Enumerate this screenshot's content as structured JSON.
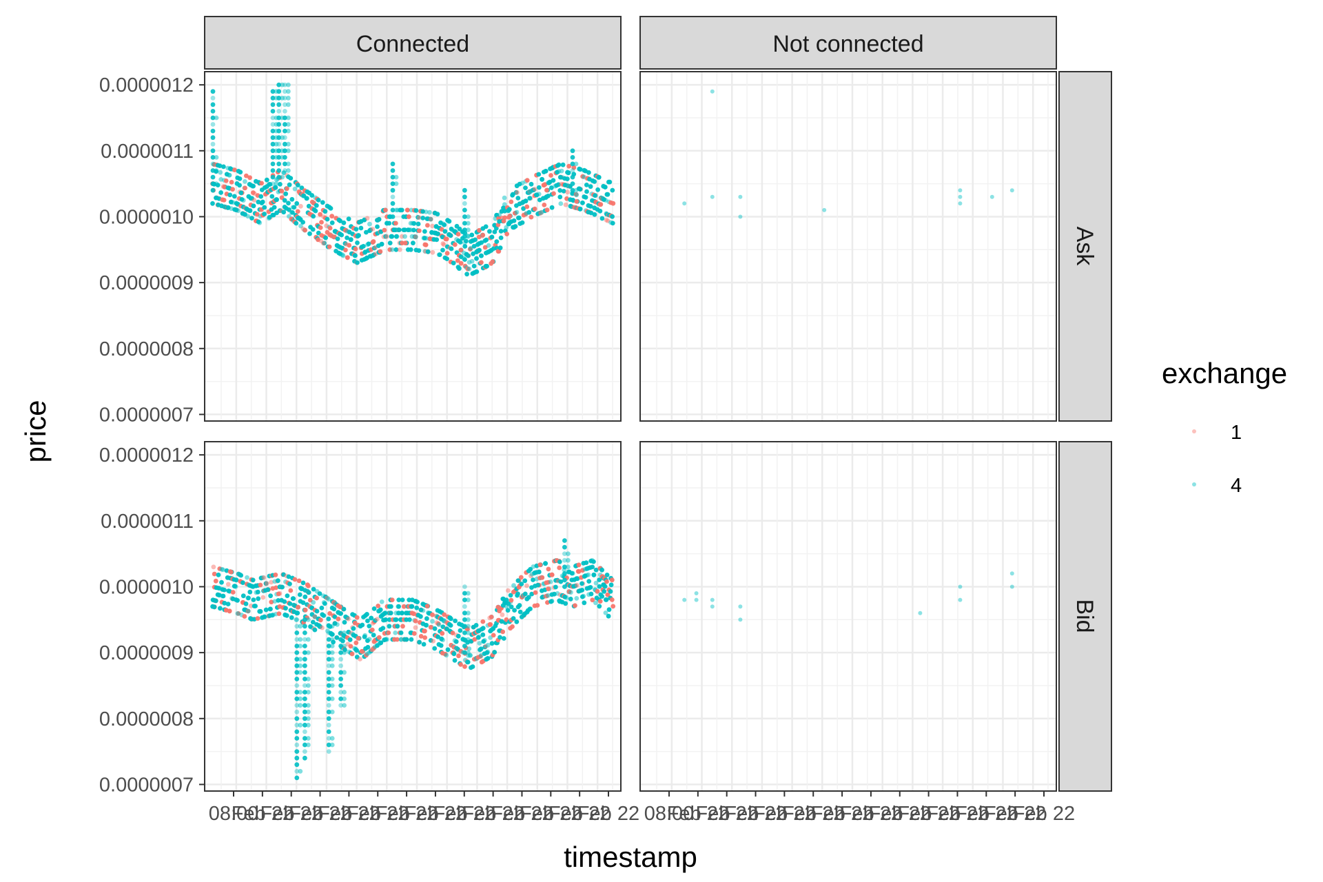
{
  "chart_data": {
    "type": "scatter",
    "xlabel": "timestamp",
    "ylabel": "price",
    "ylim": [
      6.9e-07,
      1.22e-06
    ],
    "y_ticks": [
      "0.0000007",
      "0.0000008",
      "0.0000009",
      "0.0000010",
      "0.0000011",
      "0.0000012"
    ],
    "y_tick_values": [
      7e-07,
      8e-07,
      9e-07,
      1e-06,
      1.1e-06,
      1.2e-06
    ],
    "x_tick_labels": [
      "08:00",
      "Feb 22",
      "Feb 22",
      "Feb 22",
      "Feb 22",
      "Feb 22",
      "Feb 22",
      "Feb 22",
      "Feb 22",
      "Feb 22",
      "Feb 22",
      "Feb 22",
      "Feb 22",
      "Feb 22"
    ],
    "grid": true,
    "facet_cols": [
      "Connected",
      "Not connected"
    ],
    "facet_rows": [
      "Ask",
      "Bid"
    ],
    "legend": {
      "title": "exchange",
      "position": "right",
      "entries": [
        {
          "label": "1",
          "color": "#F8766D"
        },
        {
          "label": "4",
          "color": "#00BFC4"
        }
      ]
    },
    "series": [
      {
        "name": "1",
        "color": "#F8766D"
      },
      {
        "name": "4",
        "color": "#00BFC4"
      }
    ],
    "trends": {
      "ask_connected": [
        {
          "x": 0,
          "y": 1.05e-06
        },
        {
          "x": 0.06,
          "y": 1.04e-06
        },
        {
          "x": 0.12,
          "y": 1.02e-06
        },
        {
          "x": 0.17,
          "y": 1.04e-06
        },
        {
          "x": 0.23,
          "y": 1.01e-06
        },
        {
          "x": 0.3,
          "y": 9.8e-07
        },
        {
          "x": 0.36,
          "y": 9.6e-07
        },
        {
          "x": 0.43,
          "y": 9.8e-07
        },
        {
          "x": 0.5,
          "y": 9.8e-07
        },
        {
          "x": 0.56,
          "y": 9.75e-07
        },
        {
          "x": 0.6,
          "y": 9.6e-07
        },
        {
          "x": 0.64,
          "y": 9.4e-07
        },
        {
          "x": 0.7,
          "y": 9.6e-07
        },
        {
          "x": 0.74,
          "y": 1.01e-06
        },
        {
          "x": 0.8,
          "y": 1.03e-06
        },
        {
          "x": 0.87,
          "y": 1.05e-06
        },
        {
          "x": 0.93,
          "y": 1.04e-06
        },
        {
          "x": 1.0,
          "y": 1.02e-06
        }
      ],
      "bid_connected": [
        {
          "x": 0,
          "y": 1e-06
        },
        {
          "x": 0.06,
          "y": 9.9e-07
        },
        {
          "x": 0.1,
          "y": 9.8e-07
        },
        {
          "x": 0.17,
          "y": 9.9e-07
        },
        {
          "x": 0.23,
          "y": 9.75e-07
        },
        {
          "x": 0.28,
          "y": 9.55e-07
        },
        {
          "x": 0.33,
          "y": 9.35e-07
        },
        {
          "x": 0.37,
          "y": 9.2e-07
        },
        {
          "x": 0.43,
          "y": 9.5e-07
        },
        {
          "x": 0.5,
          "y": 9.5e-07
        },
        {
          "x": 0.56,
          "y": 9.35e-07
        },
        {
          "x": 0.6,
          "y": 9.2e-07
        },
        {
          "x": 0.64,
          "y": 9.05e-07
        },
        {
          "x": 0.7,
          "y": 9.25e-07
        },
        {
          "x": 0.74,
          "y": 9.65e-07
        },
        {
          "x": 0.8,
          "y": 1e-06
        },
        {
          "x": 0.86,
          "y": 1.01e-06
        },
        {
          "x": 0.9,
          "y": 1e-06
        },
        {
          "x": 0.95,
          "y": 1.01e-06
        },
        {
          "x": 1.0,
          "y": 9.8e-07
        }
      ]
    },
    "spikes": {
      "ask": [
        {
          "x": 0.0,
          "ymin": 1.04e-06,
          "ymax": 1.19e-06
        },
        {
          "x": 0.15,
          "ymin": 1.05e-06,
          "ymax": 1.19e-06
        },
        {
          "x": 0.165,
          "ymin": 1.06e-06,
          "ymax": 1.2e-06
        },
        {
          "x": 0.18,
          "ymin": 1.07e-06,
          "ymax": 1.2e-06
        },
        {
          "x": 0.45,
          "ymin": 1e-06,
          "ymax": 1.08e-06
        },
        {
          "x": 0.63,
          "ymin": 9.6e-07,
          "ymax": 1.04e-06
        },
        {
          "x": 0.9,
          "ymin": 1.04e-06,
          "ymax": 1.1e-06
        }
      ],
      "bid": [
        {
          "x": 0.21,
          "ymin": 7.1e-07,
          "ymax": 9.6e-07
        },
        {
          "x": 0.23,
          "ymin": 7.4e-07,
          "ymax": 9.5e-07
        },
        {
          "x": 0.29,
          "ymin": 7.5e-07,
          "ymax": 9.4e-07
        },
        {
          "x": 0.32,
          "ymin": 8.2e-07,
          "ymax": 9.3e-07
        },
        {
          "x": 0.63,
          "ymin": 9e-07,
          "ymax": 1e-06
        },
        {
          "x": 0.88,
          "ymin": 1e-06,
          "ymax": 1.07e-06
        }
      ]
    },
    "not_connected": {
      "ask": [
        {
          "x": 0.09,
          "y": 1.02e-06,
          "exchange": "4"
        },
        {
          "x": 0.16,
          "y": 1.19e-06,
          "exchange": "4"
        },
        {
          "x": 0.16,
          "y": 1.03e-06,
          "exchange": "4"
        },
        {
          "x": 0.23,
          "y": 1.03e-06,
          "exchange": "4"
        },
        {
          "x": 0.23,
          "y": 1e-06,
          "exchange": "4"
        },
        {
          "x": 0.44,
          "y": 1.01e-06,
          "exchange": "4"
        },
        {
          "x": 0.78,
          "y": 1.04e-06,
          "exchange": "4"
        },
        {
          "x": 0.78,
          "y": 1.03e-06,
          "exchange": "4"
        },
        {
          "x": 0.78,
          "y": 1.02e-06,
          "exchange": "4"
        },
        {
          "x": 0.86,
          "y": 1.03e-06,
          "exchange": "4"
        },
        {
          "x": 0.91,
          "y": 1.04e-06,
          "exchange": "4"
        }
      ],
      "bid": [
        {
          "x": 0.09,
          "y": 9.8e-07,
          "exchange": "4"
        },
        {
          "x": 0.12,
          "y": 9.9e-07,
          "exchange": "4"
        },
        {
          "x": 0.12,
          "y": 9.8e-07,
          "exchange": "4"
        },
        {
          "x": 0.16,
          "y": 9.8e-07,
          "exchange": "4"
        },
        {
          "x": 0.16,
          "y": 9.7e-07,
          "exchange": "4"
        },
        {
          "x": 0.23,
          "y": 9.7e-07,
          "exchange": "4"
        },
        {
          "x": 0.23,
          "y": 9.5e-07,
          "exchange": "4"
        },
        {
          "x": 0.68,
          "y": 9.6e-07,
          "exchange": "4"
        },
        {
          "x": 0.78,
          "y": 1e-06,
          "exchange": "4"
        },
        {
          "x": 0.78,
          "y": 9.8e-07,
          "exchange": "4"
        },
        {
          "x": 0.91,
          "y": 1.02e-06,
          "exchange": "4"
        },
        {
          "x": 0.91,
          "y": 1e-06,
          "exchange": "4"
        }
      ]
    }
  }
}
